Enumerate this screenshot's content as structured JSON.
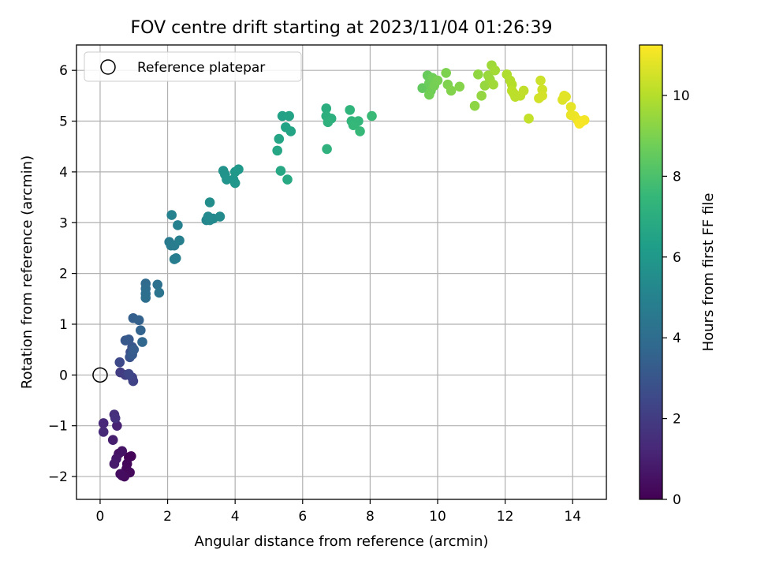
{
  "chart_data": {
    "type": "scatter",
    "title": "FOV centre drift starting at 2023/11/04 01:26:39",
    "xlabel": "Angular distance from reference (arcmin)",
    "ylabel": "Rotation from reference (arcmin)",
    "xlim": [
      -0.7,
      15.0
    ],
    "ylim": [
      -2.45,
      6.5
    ],
    "xticks": [
      0,
      2,
      4,
      6,
      8,
      10,
      12,
      14
    ],
    "yticks": [
      -2,
      -1,
      0,
      1,
      2,
      3,
      4,
      5,
      6
    ],
    "grid": true,
    "legend": {
      "location": "upper-left",
      "entries": [
        "Reference platepar"
      ]
    },
    "reference_point": {
      "x": 0,
      "y": 0,
      "label": "Reference platepar"
    },
    "colorbar": {
      "label": "Hours from first FF file",
      "colormap": "viridis",
      "range": [
        0,
        11.25
      ],
      "ticks": [
        0,
        2,
        4,
        6,
        8,
        10
      ],
      "stops": [
        "#440154",
        "#482878",
        "#3e4989",
        "#31688e",
        "#26828e",
        "#1f9e89",
        "#35b779",
        "#6ece58",
        "#b5de2b",
        "#fde725"
      ]
    },
    "points": [
      {
        "x": 0.85,
        "y": -1.62,
        "c": 0.05
      },
      {
        "x": 0.92,
        "y": -1.6,
        "c": 0.1
      },
      {
        "x": 0.8,
        "y": -1.75,
        "c": 0.15
      },
      {
        "x": 0.78,
        "y": -1.85,
        "c": 0.2
      },
      {
        "x": 0.88,
        "y": -1.92,
        "c": 0.25
      },
      {
        "x": 0.65,
        "y": -1.98,
        "c": 0.3
      },
      {
        "x": 0.72,
        "y": -2.0,
        "c": 0.35
      },
      {
        "x": 0.6,
        "y": -1.95,
        "c": 0.4
      },
      {
        "x": 0.55,
        "y": -1.55,
        "c": 0.5
      },
      {
        "x": 0.65,
        "y": -1.5,
        "c": 0.6
      },
      {
        "x": 0.48,
        "y": -1.65,
        "c": 0.7
      },
      {
        "x": 0.42,
        "y": -1.75,
        "c": 0.8
      },
      {
        "x": 0.38,
        "y": -1.28,
        "c": 0.95
      },
      {
        "x": 0.5,
        "y": -1.0,
        "c": 1.1
      },
      {
        "x": 0.1,
        "y": -0.95,
        "c": 1.25
      },
      {
        "x": 0.1,
        "y": -1.12,
        "c": 1.35
      },
      {
        "x": 0.42,
        "y": -0.78,
        "c": 1.5
      },
      {
        "x": 0.45,
        "y": -0.85,
        "c": 1.6
      },
      {
        "x": 0.6,
        "y": 0.05,
        "c": 2.0
      },
      {
        "x": 0.75,
        "y": 0.0,
        "c": 2.1
      },
      {
        "x": 0.95,
        "y": -0.05,
        "c": 2.2
      },
      {
        "x": 0.98,
        "y": -0.12,
        "c": 2.3
      },
      {
        "x": 0.85,
        "y": 0.02,
        "c": 2.4
      },
      {
        "x": 0.58,
        "y": 0.25,
        "c": 2.5
      },
      {
        "x": 0.9,
        "y": 0.45,
        "c": 2.8
      },
      {
        "x": 0.88,
        "y": 0.35,
        "c": 2.9
      },
      {
        "x": 0.95,
        "y": 0.55,
        "c": 3.0
      },
      {
        "x": 0.75,
        "y": 0.68,
        "c": 3.1
      },
      {
        "x": 0.85,
        "y": 0.7,
        "c": 3.15
      },
      {
        "x": 0.95,
        "y": 0.4,
        "c": 3.2
      },
      {
        "x": 1.0,
        "y": 0.5,
        "c": 3.3
      },
      {
        "x": 0.98,
        "y": 1.12,
        "c": 3.4
      },
      {
        "x": 1.15,
        "y": 1.08,
        "c": 3.5
      },
      {
        "x": 1.2,
        "y": 0.88,
        "c": 3.6
      },
      {
        "x": 1.25,
        "y": 0.65,
        "c": 3.7
      },
      {
        "x": 1.35,
        "y": 1.8,
        "c": 3.9
      },
      {
        "x": 1.35,
        "y": 1.7,
        "c": 4.0
      },
      {
        "x": 1.35,
        "y": 1.6,
        "c": 4.05
      },
      {
        "x": 1.35,
        "y": 1.52,
        "c": 4.1
      },
      {
        "x": 1.7,
        "y": 1.78,
        "c": 4.2
      },
      {
        "x": 1.75,
        "y": 1.62,
        "c": 4.3
      },
      {
        "x": 2.05,
        "y": 2.62,
        "c": 4.6
      },
      {
        "x": 2.1,
        "y": 2.55,
        "c": 4.65
      },
      {
        "x": 2.2,
        "y": 2.55,
        "c": 4.7
      },
      {
        "x": 2.25,
        "y": 2.3,
        "c": 4.75
      },
      {
        "x": 2.2,
        "y": 2.28,
        "c": 4.8
      },
      {
        "x": 2.35,
        "y": 2.65,
        "c": 4.85
      },
      {
        "x": 2.3,
        "y": 2.95,
        "c": 4.9
      },
      {
        "x": 2.12,
        "y": 3.15,
        "c": 5.0
      },
      {
        "x": 3.15,
        "y": 3.05,
        "c": 5.2
      },
      {
        "x": 3.25,
        "y": 3.05,
        "c": 5.25
      },
      {
        "x": 3.35,
        "y": 3.08,
        "c": 5.3
      },
      {
        "x": 3.2,
        "y": 3.12,
        "c": 5.35
      },
      {
        "x": 3.55,
        "y": 3.12,
        "c": 5.4
      },
      {
        "x": 3.25,
        "y": 3.4,
        "c": 5.5
      },
      {
        "x": 3.65,
        "y": 4.02,
        "c": 5.7
      },
      {
        "x": 3.7,
        "y": 3.95,
        "c": 5.75
      },
      {
        "x": 3.75,
        "y": 3.85,
        "c": 5.8
      },
      {
        "x": 3.95,
        "y": 3.85,
        "c": 5.85
      },
      {
        "x": 4.0,
        "y": 3.78,
        "c": 5.9
      },
      {
        "x": 4.0,
        "y": 4.0,
        "c": 5.95
      },
      {
        "x": 4.1,
        "y": 4.05,
        "c": 6.0
      },
      {
        "x": 5.4,
        "y": 5.1,
        "c": 6.4
      },
      {
        "x": 5.6,
        "y": 5.1,
        "c": 6.45
      },
      {
        "x": 5.5,
        "y": 4.88,
        "c": 6.5
      },
      {
        "x": 5.65,
        "y": 4.8,
        "c": 6.55
      },
      {
        "x": 5.3,
        "y": 4.65,
        "c": 6.6
      },
      {
        "x": 5.25,
        "y": 4.42,
        "c": 6.65
      },
      {
        "x": 5.35,
        "y": 4.02,
        "c": 6.7
      },
      {
        "x": 5.55,
        "y": 3.85,
        "c": 6.75
      },
      {
        "x": 6.7,
        "y": 5.25,
        "c": 7.0
      },
      {
        "x": 6.7,
        "y": 5.1,
        "c": 7.05
      },
      {
        "x": 6.85,
        "y": 5.05,
        "c": 7.1
      },
      {
        "x": 6.75,
        "y": 4.98,
        "c": 7.15
      },
      {
        "x": 6.72,
        "y": 4.45,
        "c": 7.2
      },
      {
        "x": 7.4,
        "y": 5.22,
        "c": 7.3
      },
      {
        "x": 7.45,
        "y": 5.0,
        "c": 7.35
      },
      {
        "x": 7.55,
        "y": 4.95,
        "c": 7.4
      },
      {
        "x": 7.65,
        "y": 5.0,
        "c": 7.45
      },
      {
        "x": 7.5,
        "y": 4.92,
        "c": 7.5
      },
      {
        "x": 7.7,
        "y": 4.8,
        "c": 7.55
      },
      {
        "x": 8.05,
        "y": 5.1,
        "c": 7.6
      },
      {
        "x": 9.55,
        "y": 5.65,
        "c": 8.5
      },
      {
        "x": 9.7,
        "y": 5.9,
        "c": 8.6
      },
      {
        "x": 9.75,
        "y": 5.75,
        "c": 8.65
      },
      {
        "x": 9.8,
        "y": 5.6,
        "c": 8.7
      },
      {
        "x": 9.85,
        "y": 5.85,
        "c": 8.75
      },
      {
        "x": 9.75,
        "y": 5.52,
        "c": 8.8
      },
      {
        "x": 9.9,
        "y": 5.7,
        "c": 8.85
      },
      {
        "x": 10.0,
        "y": 5.8,
        "c": 8.9
      },
      {
        "x": 10.25,
        "y": 5.95,
        "c": 9.0
      },
      {
        "x": 10.3,
        "y": 5.72,
        "c": 9.05
      },
      {
        "x": 10.4,
        "y": 5.6,
        "c": 9.1
      },
      {
        "x": 10.65,
        "y": 5.68,
        "c": 9.15
      },
      {
        "x": 11.1,
        "y": 5.3,
        "c": 9.3
      },
      {
        "x": 11.2,
        "y": 5.92,
        "c": 9.35
      },
      {
        "x": 11.3,
        "y": 5.5,
        "c": 9.4
      },
      {
        "x": 11.4,
        "y": 5.7,
        "c": 9.45
      },
      {
        "x": 11.5,
        "y": 5.9,
        "c": 9.5
      },
      {
        "x": 11.55,
        "y": 5.82,
        "c": 9.55
      },
      {
        "x": 11.6,
        "y": 6.1,
        "c": 9.6
      },
      {
        "x": 11.65,
        "y": 5.72,
        "c": 9.65
      },
      {
        "x": 11.7,
        "y": 6.0,
        "c": 9.7
      },
      {
        "x": 12.05,
        "y": 5.92,
        "c": 9.9
      },
      {
        "x": 12.15,
        "y": 5.8,
        "c": 9.95
      },
      {
        "x": 12.2,
        "y": 5.72,
        "c": 10.0
      },
      {
        "x": 12.25,
        "y": 5.55,
        "c": 10.05
      },
      {
        "x": 12.3,
        "y": 5.48,
        "c": 10.1
      },
      {
        "x": 12.2,
        "y": 5.6,
        "c": 10.12
      },
      {
        "x": 12.45,
        "y": 5.5,
        "c": 10.15
      },
      {
        "x": 12.55,
        "y": 5.6,
        "c": 10.2
      },
      {
        "x": 12.7,
        "y": 5.05,
        "c": 10.25
      },
      {
        "x": 13.05,
        "y": 5.8,
        "c": 10.4
      },
      {
        "x": 13.1,
        "y": 5.62,
        "c": 10.45
      },
      {
        "x": 13.0,
        "y": 5.45,
        "c": 10.5
      },
      {
        "x": 13.1,
        "y": 5.5,
        "c": 10.52
      },
      {
        "x": 13.7,
        "y": 5.42,
        "c": 10.7
      },
      {
        "x": 13.8,
        "y": 5.48,
        "c": 10.75
      },
      {
        "x": 13.75,
        "y": 5.5,
        "c": 10.78
      },
      {
        "x": 13.95,
        "y": 5.28,
        "c": 10.85
      },
      {
        "x": 13.95,
        "y": 5.12,
        "c": 10.9
      },
      {
        "x": 14.05,
        "y": 5.1,
        "c": 10.95
      },
      {
        "x": 14.15,
        "y": 5.02,
        "c": 11.0
      },
      {
        "x": 14.25,
        "y": 4.98,
        "c": 11.05
      },
      {
        "x": 14.35,
        "y": 5.02,
        "c": 11.1
      },
      {
        "x": 14.2,
        "y": 4.95,
        "c": 11.15
      }
    ]
  }
}
